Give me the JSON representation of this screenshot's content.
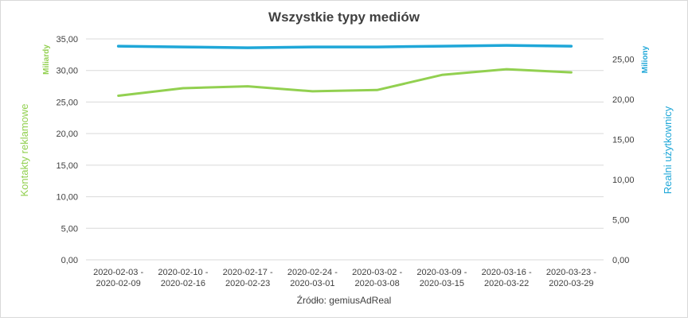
{
  "chart_data": {
    "type": "line",
    "title": "Wszystkie typy mediów",
    "source_note": "Źródło: gemiusAdReal",
    "categories": [
      [
        "2020-02-03 -",
        "2020-02-09"
      ],
      [
        "2020-02-10 -",
        "2020-02-16"
      ],
      [
        "2020-02-17 -",
        "2020-02-23"
      ],
      [
        "2020-02-24 -",
        "2020-03-01"
      ],
      [
        "2020-03-02 -",
        "2020-03-08"
      ],
      [
        "2020-03-09 -",
        "2020-03-15"
      ],
      [
        "2020-03-16 -",
        "2020-03-22"
      ],
      [
        "2020-03-23 -",
        "2020-03-29"
      ]
    ],
    "y_left": {
      "label": "Kontakty reklamowe",
      "unit": "Miliardy",
      "ylim": [
        0,
        35
      ],
      "ticks": [
        "0,00",
        "5,00",
        "10,00",
        "15,00",
        "20,00",
        "25,00",
        "30,00",
        "35,00"
      ],
      "tick_values": [
        0,
        5,
        10,
        15,
        20,
        25,
        30,
        35
      ],
      "color": "#92d050"
    },
    "y_right": {
      "label": "Realni użytkownicy",
      "unit": "Miliony",
      "ylim": [
        0,
        27.5
      ],
      "ticks": [
        "0,00",
        "5,00",
        "10,00",
        "15,00",
        "20,00",
        "25,00"
      ],
      "tick_values": [
        0,
        5,
        10,
        15,
        20,
        25
      ],
      "color": "#1fa7d8"
    },
    "series": [
      {
        "axis": "left",
        "color": "#92d050",
        "values": [
          26.0,
          27.2,
          27.5,
          26.7,
          26.9,
          29.3,
          30.2,
          29.7
        ]
      },
      {
        "axis": "right",
        "color": "#1fa7d8",
        "values": [
          26.6,
          26.5,
          26.4,
          26.5,
          26.5,
          26.6,
          26.7,
          26.6
        ]
      }
    ],
    "grid": true
  }
}
